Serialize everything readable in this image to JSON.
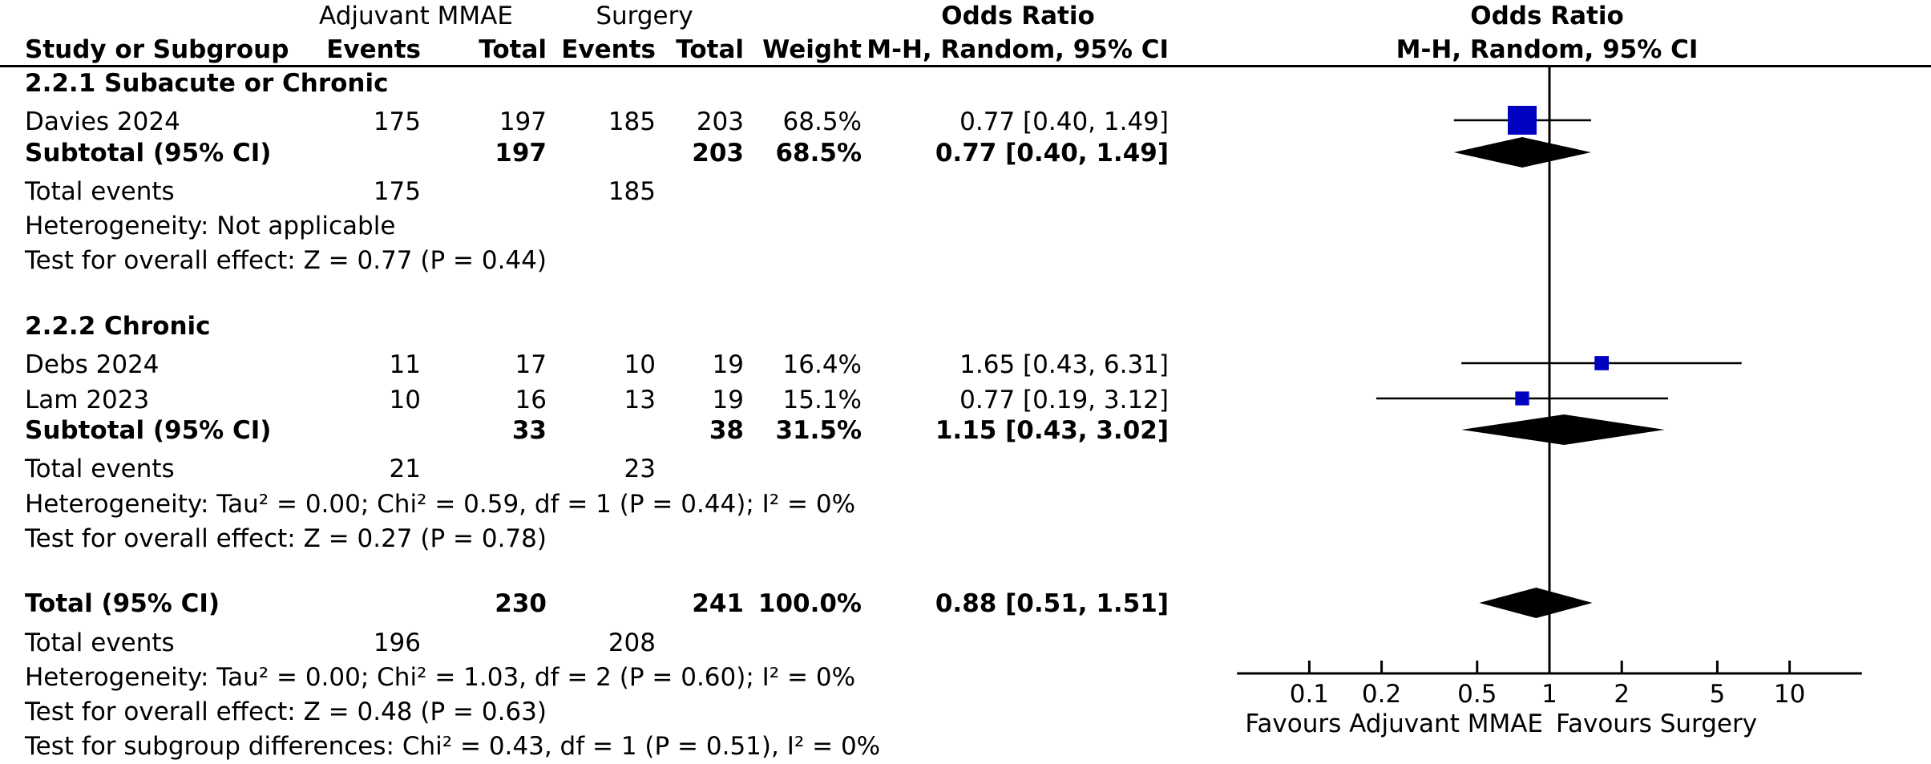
{
  "header": {
    "group1": "Adjuvant MMAE",
    "group2": "Surgery",
    "or_title": "Odds Ratio",
    "study_col": "Study or Subgroup",
    "events1": "Events",
    "total1": "Total",
    "events2": "Events",
    "total2": "Total",
    "weight": "Weight",
    "method": "M-H, Random, 95% CI",
    "plot_title": "Odds Ratio",
    "plot_method": "M-H, Random, 95% CI"
  },
  "subgroup1": {
    "title": "2.2.1 Subacute or Chronic",
    "study": {
      "name": "Davies 2024",
      "e1": "175",
      "t1": "197",
      "e2": "185",
      "t2": "203",
      "weight": "68.5%",
      "ci": "0.77 [0.40, 1.49]"
    },
    "subtotal": {
      "label": "Subtotal (95% CI)",
      "t1": "197",
      "t2": "203",
      "weight": "68.5%",
      "ci": "0.77 [0.40, 1.49]"
    },
    "total_events": {
      "label": "Total events",
      "e1": "175",
      "e2": "185"
    },
    "heterogeneity": "Heterogeneity: Not applicable",
    "overall": "Test for overall effect: Z = 0.77 (P = 0.44)"
  },
  "subgroup2": {
    "title": "2.2.2 Chronic",
    "study1": {
      "name": "Debs 2024",
      "e1": "11",
      "t1": "17",
      "e2": "10",
      "t2": "19",
      "weight": "16.4%",
      "ci": "1.65 [0.43, 6.31]"
    },
    "study2": {
      "name": "Lam 2023",
      "e1": "10",
      "t1": "16",
      "e2": "13",
      "t2": "19",
      "weight": "15.1%",
      "ci": "0.77 [0.19, 3.12]"
    },
    "subtotal": {
      "label": "Subtotal (95% CI)",
      "t1": "33",
      "t2": "38",
      "weight": "31.5%",
      "ci": "1.15 [0.43, 3.02]"
    },
    "total_events": {
      "label": "Total events",
      "e1": "21",
      "e2": "23"
    },
    "heterogeneity": "Heterogeneity: Tau² = 0.00; Chi² = 0.59, df = 1 (P = 0.44); I² = 0%",
    "overall": "Test for overall effect: Z = 0.27 (P = 0.78)"
  },
  "total": {
    "label": "Total (95% CI)",
    "t1": "230",
    "t2": "241",
    "weight": "100.0%",
    "ci": "0.88 [0.51, 1.51]",
    "total_events": {
      "label": "Total events",
      "e1": "196",
      "e2": "208"
    },
    "heterogeneity": "Heterogeneity: Tau² = 0.00; Chi² = 1.03, df = 2 (P = 0.60); I² = 0%",
    "overall": "Test for overall effect: Z = 0.48 (P = 0.63)",
    "subgroup_diff": "Test for subgroup differences: Chi² = 0.43, df = 1 (P = 0.51), I² = 0%"
  },
  "axis": {
    "favours_left": "Favours Adjuvant MMAE",
    "favours_right": "Favours Surgery"
  },
  "chart_data": {
    "type": "forest",
    "scale": "log",
    "xlim": [
      0.05,
      20
    ],
    "ticks": [
      {
        "value": 0.1,
        "label": "0.1"
      },
      {
        "value": 0.2,
        "label": "0.2"
      },
      {
        "value": 0.5,
        "label": "0.5"
      },
      {
        "value": 1,
        "label": "1"
      },
      {
        "value": 2,
        "label": "2"
      },
      {
        "value": 5,
        "label": "5"
      },
      {
        "value": 10,
        "label": "10"
      }
    ],
    "studies": [
      {
        "id": "davies",
        "or": 0.77,
        "lo": 0.4,
        "hi": 1.49,
        "weight": 68.5
      },
      {
        "id": "debs",
        "or": 1.65,
        "lo": 0.43,
        "hi": 6.31,
        "weight": 16.4
      },
      {
        "id": "lam",
        "or": 0.77,
        "lo": 0.19,
        "hi": 3.12,
        "weight": 15.1
      }
    ],
    "diamonds": [
      {
        "id": "subtotal1",
        "or": 0.77,
        "lo": 0.4,
        "hi": 1.49
      },
      {
        "id": "subtotal2",
        "or": 1.15,
        "lo": 0.43,
        "hi": 3.02
      },
      {
        "id": "total",
        "or": 0.88,
        "lo": 0.51,
        "hi": 1.51
      }
    ],
    "colors": {
      "square": "#0000c0",
      "diamond": "#000000"
    }
  }
}
